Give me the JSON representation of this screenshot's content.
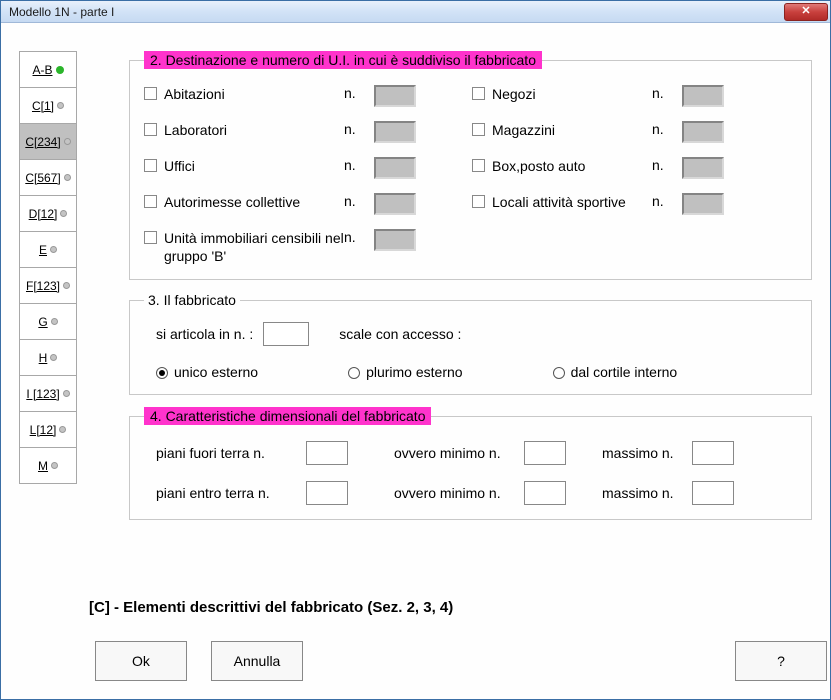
{
  "window": {
    "title": "Modello 1N  -   parte I"
  },
  "sidebar": {
    "items": [
      {
        "label": "A-B",
        "dot": "green",
        "selected": false
      },
      {
        "label": "C[1]",
        "dot": "gray",
        "selected": false
      },
      {
        "label": "C[234]",
        "dot": "gray",
        "selected": true
      },
      {
        "label": "C[567]",
        "dot": "gray",
        "selected": false
      },
      {
        "label": "D[12]",
        "dot": "gray",
        "selected": false
      },
      {
        "label": "E",
        "dot": "gray",
        "selected": false
      },
      {
        "label": "F[123]",
        "dot": "gray",
        "selected": false
      },
      {
        "label": "G",
        "dot": "gray",
        "selected": false
      },
      {
        "label": "H",
        "dot": "gray",
        "selected": false
      },
      {
        "label": "I [123]",
        "dot": "gray",
        "selected": false
      },
      {
        "label": "L[12]",
        "dot": "gray",
        "selected": false
      },
      {
        "label": "M",
        "dot": "gray",
        "selected": false
      }
    ]
  },
  "section2": {
    "title": "2. Destinazione e numero di U.I. in cui è suddiviso il fabbricato",
    "n_label": "n.",
    "rows_left": [
      "Abitazioni",
      "Laboratori",
      "Uffici",
      "Autorimesse collettive",
      "Unità immobiliari censibili nel gruppo 'B'"
    ],
    "rows_right": [
      "Negozi",
      "Magazzini",
      "Box,posto auto",
      "Locali attività sportive"
    ]
  },
  "section3": {
    "title": "3. Il fabbricato",
    "line1_a": "si articola in n. :",
    "line1_b": "scale con accesso :",
    "radios": [
      "unico esterno",
      "plurimo esterno",
      "dal cortile interno"
    ],
    "selected_radio": 0
  },
  "section4": {
    "title": "4. Caratteristiche dimensionali del fabbricato",
    "row1_a": "piani fuori terra n.",
    "row1_b": "ovvero minimo n.",
    "row1_c": "massimo n.",
    "row2_a": "piani entro terra n.",
    "row2_b": "ovvero minimo n.",
    "row2_c": "massimo n."
  },
  "footer": {
    "text": "[C] - Elementi descrittivi del fabbricato (Sez. 2, 3, 4)",
    "ok": "Ok",
    "cancel": "Annulla",
    "help": "?"
  },
  "colors": {
    "highlight": "#ff33cc",
    "greybox": "#c0c0c0"
  }
}
